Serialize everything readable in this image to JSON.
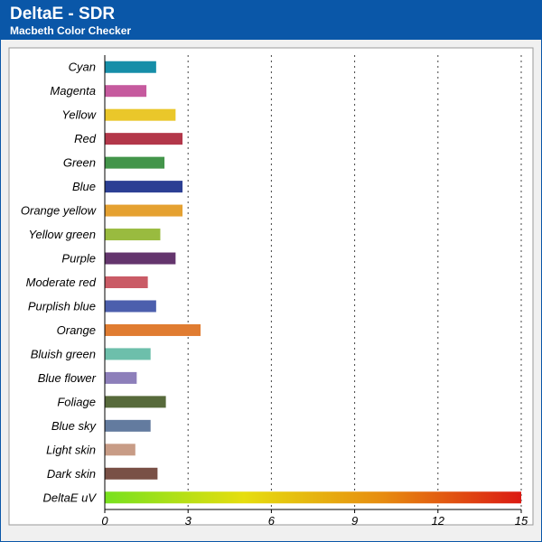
{
  "header": {
    "title": "DeltaE - SDR",
    "subtitle": "Macbeth Color Checker"
  },
  "chart_data": {
    "type": "bar",
    "orientation": "horizontal",
    "title": "DeltaE - SDR",
    "subtitle": "Macbeth Color Checker",
    "xlim": [
      0,
      15
    ],
    "x_ticks": [
      0,
      3,
      6,
      9,
      12,
      15
    ],
    "grid": "vertical dotted",
    "categories": [
      "Cyan",
      "Magenta",
      "Yellow",
      "Red",
      "Green",
      "Blue",
      "Orange yellow",
      "Yellow green",
      "Purple",
      "Moderate red",
      "Purplish blue",
      "Orange",
      "Bluish green",
      "Blue flower",
      "Foliage",
      "Blue sky",
      "Light skin",
      "Dark skin",
      "DeltaE uV"
    ],
    "values": [
      1.85,
      1.5,
      2.55,
      2.8,
      2.15,
      2.8,
      2.8,
      2.0,
      2.55,
      1.55,
      1.85,
      3.45,
      1.65,
      1.15,
      2.2,
      1.65,
      1.1,
      1.9,
      15
    ],
    "colors": [
      "#168ea8",
      "#c65a9e",
      "#eac72a",
      "#b3374a",
      "#43954a",
      "#2c3f94",
      "#e5a131",
      "#99bb3f",
      "#64356d",
      "#ca5b66",
      "#4c5fad",
      "#e07c31",
      "#6dbfab",
      "#8d7fba",
      "#576a3b",
      "#637b9f",
      "#c89c86",
      "#795046",
      "gradient"
    ],
    "gradient_colors": [
      "#77e11f",
      "#e6de0f",
      "#e78c10",
      "#db1a12"
    ]
  }
}
